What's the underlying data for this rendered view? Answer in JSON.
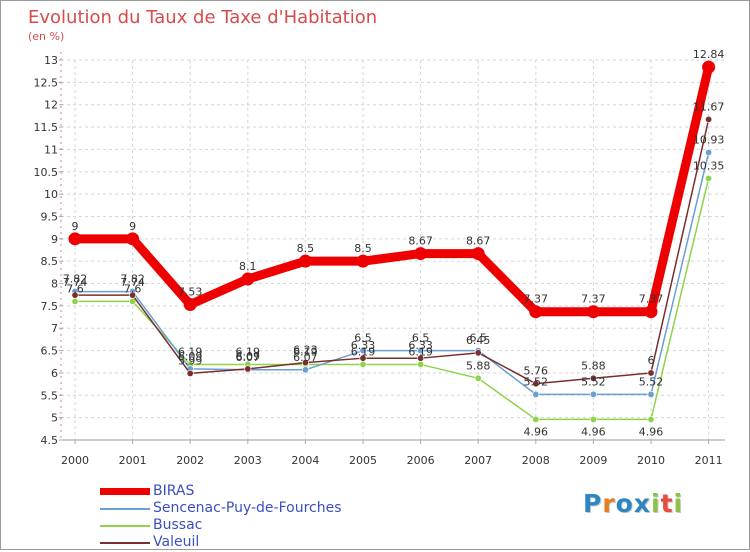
{
  "title": "Evolution du Taux de Taxe d'Habitation",
  "unit": "(en %)",
  "brand": {
    "letters": [
      "P",
      "r",
      "o",
      "x",
      "i",
      "t",
      "i"
    ],
    "colors": [
      "#2e86c1",
      "#e67e22",
      "#2e86c1",
      "#2e86c1",
      "#8bc34a",
      "#e74c3c",
      "#8bc34a"
    ]
  },
  "chart_data": {
    "type": "line",
    "title": "Evolution du Taux de Taxe d'Habitation",
    "ylabel": "(en %)",
    "xlabel": "",
    "x": [
      "2000",
      "2001",
      "2002",
      "2003",
      "2004",
      "2005",
      "2006",
      "2007",
      "2008",
      "2009",
      "2010",
      "2011"
    ],
    "ylim": [
      4.5,
      13
    ],
    "yticks": [
      "4.5",
      "5",
      "5.5",
      "6",
      "6.5",
      "7",
      "7.5",
      "8",
      "8.5",
      "9",
      "9.5",
      "10",
      "10.5",
      "11",
      "11.5",
      "12",
      "12.5",
      "13"
    ],
    "grid": true,
    "series": [
      {
        "name": "BIRAS",
        "color": "#ee0000",
        "values": [
          9,
          9,
          7.53,
          8.1,
          8.5,
          8.5,
          8.67,
          8.67,
          7.37,
          7.37,
          7.37,
          12.84
        ],
        "labels": [
          "9",
          "9",
          "7.53",
          "8.1",
          "8.5",
          "8.5",
          "8.67",
          "8.67",
          "7.37",
          "7.37",
          "7.37",
          "12.84"
        ]
      },
      {
        "name": "Sencenac-Puy-de-Fourches",
        "color": "#6a9fd4",
        "values": [
          7.82,
          7.82,
          6.09,
          6.07,
          6.07,
          6.5,
          6.5,
          6.5,
          5.52,
          5.52,
          5.52,
          10.93
        ],
        "labels": [
          "7.82",
          "7.82",
          "6.09",
          "6.07",
          "6.07",
          "6.5",
          "6.5",
          "6.5",
          "5.52",
          "5.52",
          "5.52",
          "10.93"
        ]
      },
      {
        "name": "Bussac",
        "color": "#8ed44a",
        "values": [
          7.6,
          7.6,
          6.19,
          6.19,
          6.19,
          6.19,
          6.19,
          5.88,
          4.96,
          4.96,
          4.96,
          10.35
        ],
        "labels": [
          "7.6",
          "7.6",
          "6.19",
          "6.19",
          "6.19",
          "6.19",
          "6.19",
          "5.88",
          "4.96",
          "4.96",
          "4.96",
          "10.35"
        ]
      },
      {
        "name": "Valeuil",
        "color": "#7a2e2e",
        "values": [
          7.74,
          7.74,
          5.99,
          6.09,
          6.23,
          6.33,
          6.33,
          6.45,
          5.76,
          5.88,
          6,
          11.67
        ],
        "labels": [
          "7.74",
          "7.74",
          "5.99",
          "6.09",
          "6.23",
          "6.33",
          "6.33",
          "6.45",
          "5.76",
          "5.88",
          "6",
          "11.67"
        ]
      }
    ]
  }
}
